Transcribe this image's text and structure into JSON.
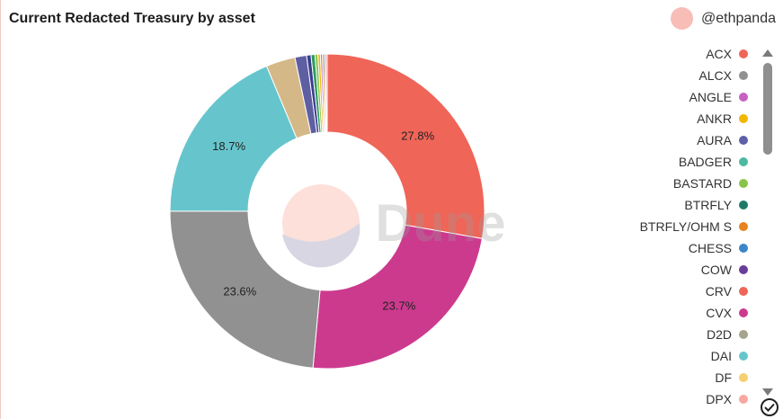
{
  "title": "Current Redacted Treasury by asset",
  "author": {
    "handle": "@ethpanda"
  },
  "watermark": "Dune",
  "colors": {
    "accent": "#f7bdb6"
  },
  "chart_data": {
    "type": "pie",
    "title": "Current Redacted Treasury by asset",
    "donut": true,
    "legend_position": "right",
    "slices": [
      {
        "label": "ACX",
        "value": 27.8,
        "color": "#ef6558",
        "display": "27.8%"
      },
      {
        "label": "CVX",
        "value": 23.7,
        "color": "#cc3a8e",
        "display": "23.7%"
      },
      {
        "label": "ALCX",
        "value": 23.6,
        "color": "#919191",
        "display": "23.6%"
      },
      {
        "label": "DAI",
        "value": 18.7,
        "color": "#66c5cc",
        "display": "18.7%"
      },
      {
        "label": "",
        "value": 3.0,
        "color": "#d5b888",
        "display": ""
      },
      {
        "label": "",
        "value": 1.2,
        "color": "#5e5ea3",
        "display": ""
      },
      {
        "label": "",
        "value": 0.45,
        "color": "#3d3d8f",
        "display": ""
      },
      {
        "label": "",
        "value": 0.4,
        "color": "#2a9d5c",
        "display": ""
      },
      {
        "label": "",
        "value": 0.3,
        "color": "#8bc34a",
        "display": ""
      },
      {
        "label": "",
        "value": 0.25,
        "color": "#f2b705",
        "display": ""
      },
      {
        "label": "",
        "value": 0.2,
        "color": "#b479c9",
        "display": ""
      },
      {
        "label": "",
        "value": 0.2,
        "color": "#e68a2e",
        "display": ""
      },
      {
        "label": "",
        "value": 0.15,
        "color": "#4a90d9",
        "display": ""
      },
      {
        "label": "",
        "value": 0.15,
        "color": "#f47c74",
        "display": ""
      }
    ]
  },
  "legend": {
    "items": [
      {
        "label": "ACX",
        "color": "#ef6558"
      },
      {
        "label": "ALCX",
        "color": "#919191"
      },
      {
        "label": "ANGLE",
        "color": "#c762c0"
      },
      {
        "label": "ANKR",
        "color": "#f2b705"
      },
      {
        "label": "AURA",
        "color": "#5e60a8"
      },
      {
        "label": "BADGER",
        "color": "#4fb8a1"
      },
      {
        "label": "BASTARD",
        "color": "#8bc34a"
      },
      {
        "label": "BTRFLY",
        "color": "#1e7a66"
      },
      {
        "label": "BTRFLY/OHM S",
        "color": "#e6831e"
      },
      {
        "label": "CHESS",
        "color": "#3a87c8"
      },
      {
        "label": "COW",
        "color": "#6a3d9a"
      },
      {
        "label": "CRV",
        "color": "#ef6558"
      },
      {
        "label": "CVX",
        "color": "#cc3a8e"
      },
      {
        "label": "D2D",
        "color": "#a5a58d"
      },
      {
        "label": "DAI",
        "color": "#66c5cc"
      },
      {
        "label": "DF",
        "color": "#f6cf71"
      },
      {
        "label": "DPX",
        "color": "#f7a8a0"
      }
    ]
  }
}
